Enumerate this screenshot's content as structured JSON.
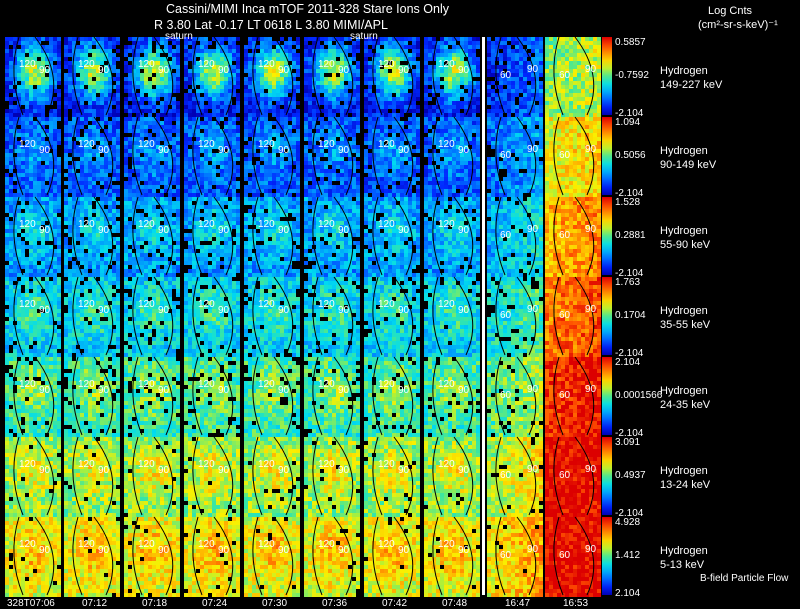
{
  "header": {
    "line1": "Cassini/MIMI Inca mTOF  2011-328   Stare   Ions Only",
    "line2": "R        3.80 Lat -0.17 LT 0618 L          3.80   MIMI/APL",
    "saturn_label_1": "saturn",
    "saturn_label_2": "saturn"
  },
  "colorbar_title": {
    "line1": "Log Cnts",
    "line2": "(cm²-sr-s-keV)⁻¹"
  },
  "footer_note": "B-field Particle Flow",
  "time_labels": [
    "328T07:06",
    "07:12",
    "07:18",
    "07:24",
    "07:30",
    "07:36",
    "07:42",
    "07:48",
    "16:47",
    "16:53"
  ],
  "contour_labels": {
    "inner": "120",
    "outer": "90",
    "right": "60"
  },
  "colors": {
    "background": "#000000",
    "text": "#ffffff",
    "separator": "#ffffff",
    "contour": "#000000"
  },
  "chart_data": {
    "type": "heatmap",
    "columns": [
      "328T07:06",
      "07:12",
      "07:18",
      "07:24",
      "07:30",
      "07:36",
      "07:42",
      "07:48",
      "16:47",
      "16:53"
    ],
    "colorscale": "blue-cyan-yellow-red (log counts)",
    "rows": [
      {
        "species": "Hydrogen",
        "energy": "149-227 keV",
        "max": "0.5857",
        "mid": "-0.7592",
        "min": "-2.104",
        "level": 0.12
      },
      {
        "species": "Hydrogen",
        "energy": "90-149 keV",
        "max": "1.094",
        "mid": "0.5056",
        "min": "-2.104",
        "level": 0.22
      },
      {
        "species": "Hydrogen",
        "energy": "55-90 keV",
        "max": "1.528",
        "mid": "0.2881",
        "min": "-2.104",
        "level": 0.32
      },
      {
        "species": "Hydrogen",
        "energy": "35-55 keV",
        "max": "1.763",
        "mid": "0.1704",
        "min": "-2.104",
        "level": 0.4
      },
      {
        "species": "Hydrogen",
        "energy": "24-35 keV",
        "max": "2.104",
        "mid": "0.0001566",
        "min": "-2.104",
        "level": 0.5
      },
      {
        "species": "Hydrogen",
        "energy": "13-24 keV",
        "max": "3.091",
        "mid": "0.4937",
        "min": "-2.104",
        "level": 0.6
      },
      {
        "species": "Hydrogen",
        "energy": "5-13 keV",
        "max": "4.928",
        "mid": "1.412",
        "min": "2.104",
        "level": 0.68
      }
    ]
  }
}
